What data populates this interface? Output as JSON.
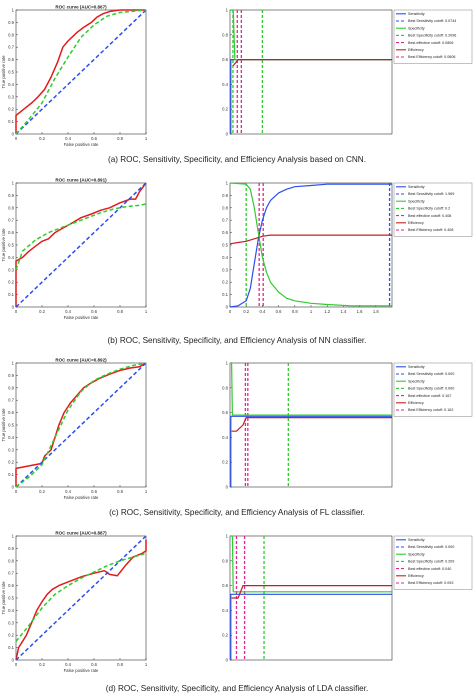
{
  "chart_data": [
    {
      "type": "line",
      "panel": "a-roc",
      "title": "ROC curve (AUC=0.867)",
      "xlabel": "False positive rate",
      "ylabel": "True positive rate",
      "xlim": [
        0,
        1
      ],
      "ylim": [
        0,
        1
      ],
      "xticks": [
        "0",
        "0.2",
        "0.4",
        "0.6",
        "0.8",
        "1"
      ],
      "yticks": [
        "0",
        "0.1",
        "0.2",
        "0.3",
        "0.4",
        "0.5",
        "0.6",
        "0.7",
        "0.8",
        "0.9",
        "1"
      ],
      "series": [
        {
          "color": "#e11b1b",
          "style": "solid",
          "x": [
            0,
            0,
            0.06,
            0.12,
            0.17,
            0.22,
            0.27,
            0.32,
            0.36,
            0.4,
            0.47,
            0.52,
            0.58,
            0.62,
            0.67,
            0.73,
            0.8,
            0.87,
            1
          ],
          "y": [
            0,
            0.15,
            0.2,
            0.25,
            0.3,
            0.36,
            0.46,
            0.58,
            0.7,
            0.75,
            0.82,
            0.86,
            0.9,
            0.94,
            0.97,
            0.99,
            1,
            1,
            1
          ]
        },
        {
          "color": "#2b4ef0",
          "style": "dashed",
          "x": [
            0,
            1
          ],
          "y": [
            0,
            1
          ]
        },
        {
          "color": "#2ecc2e",
          "style": "dashed",
          "x": [
            0,
            0.1,
            0.2,
            0.3,
            0.4,
            0.5,
            0.6,
            0.7,
            0.8,
            1
          ],
          "y": [
            0,
            0.12,
            0.25,
            0.45,
            0.62,
            0.78,
            0.88,
            0.95,
            0.98,
            1
          ]
        }
      ]
    },
    {
      "type": "line",
      "panel": "a-sens",
      "xlim": [
        0,
        1
      ],
      "ylim": [
        0,
        1
      ],
      "xticks": [],
      "yticks": [
        "0",
        "0.2",
        "0.4",
        "0.6",
        "0.8",
        "1"
      ],
      "legend": [
        "Sensitivity",
        "Best Sensitivity cutoff: 0.0744",
        "Specificity",
        "Best Specificity cutoff: 0.2096",
        "Best effective cutoff: 0.0806",
        "Efficiency",
        "Best Efficiency cutoff: 0.0806"
      ],
      "series": [
        {
          "color": "#2b4ef0",
          "style": "solid",
          "x": [
            0.005,
            0.005,
            1
          ],
          "y": [
            0,
            0.6,
            0.6
          ]
        },
        {
          "color": "#2ecc2e",
          "style": "solid",
          "x": [
            0,
            0.02,
            0.03,
            1
          ],
          "y": [
            1,
            1,
            0.6,
            0.6
          ]
        },
        {
          "color": "#c42020",
          "style": "solid",
          "x": [
            0.02,
            0.05,
            1
          ],
          "y": [
            0.55,
            0.6,
            0.6
          ]
        }
      ],
      "vlines": [
        {
          "x": 0.018,
          "color": "#2ecc2e",
          "style": "dashed"
        },
        {
          "x": 0.045,
          "color": "#e0268f",
          "style": "dashed"
        },
        {
          "x": 0.07,
          "color": "#e0268f",
          "style": "dashed"
        },
        {
          "x": 0.2,
          "color": "#2ecc2e",
          "style": "dashed"
        }
      ]
    },
    {
      "type": "line",
      "panel": "b-roc",
      "title": "ROC curve (AUC=0.891)",
      "xlabel": "False positive rate",
      "ylabel": "True positive rate",
      "xlim": [
        0,
        1
      ],
      "ylim": [
        0,
        1
      ],
      "xticks": [
        "0",
        "0.2",
        "0.4",
        "0.6",
        "0.8",
        "1"
      ],
      "yticks": [
        "0",
        "0.1",
        "0.2",
        "0.3",
        "0.4",
        "0.5",
        "0.6",
        "0.7",
        "0.8",
        "0.9",
        "1"
      ],
      "series": [
        {
          "color": "#e11b1b",
          "style": "solid",
          "x": [
            0,
            0,
            0.05,
            0.1,
            0.15,
            0.2,
            0.25,
            0.3,
            0.35,
            0.42,
            0.5,
            0.58,
            0.65,
            0.72,
            0.8,
            0.88,
            0.92,
            0.95,
            1
          ],
          "y": [
            0,
            0.37,
            0.4,
            0.45,
            0.49,
            0.53,
            0.55,
            0.6,
            0.63,
            0.67,
            0.72,
            0.75,
            0.78,
            0.8,
            0.84,
            0.87,
            0.87,
            0.93,
            1
          ]
        },
        {
          "color": "#2b4ef0",
          "style": "dashed",
          "x": [
            0,
            1
          ],
          "y": [
            0,
            1
          ]
        },
        {
          "color": "#2ecc2e",
          "style": "dashed",
          "x": [
            0,
            0.05,
            0.15,
            0.25,
            0.35,
            0.45,
            0.55,
            0.65,
            0.75,
            0.85,
            0.95,
            1
          ],
          "y": [
            0.3,
            0.45,
            0.54,
            0.6,
            0.64,
            0.68,
            0.72,
            0.76,
            0.79,
            0.81,
            0.82,
            0.83
          ]
        }
      ]
    },
    {
      "type": "line",
      "panel": "b-sens",
      "xlim": [
        0,
        2
      ],
      "ylim": [
        0,
        1
      ],
      "xticks": [
        "0",
        "0.2",
        "0.4",
        "0.6",
        "0.8",
        "1",
        "1.2",
        "1.4",
        "1.6",
        "1.8"
      ],
      "yticks": [
        "0",
        "0.1",
        "0.2",
        "0.3",
        "0.4",
        "0.5",
        "0.6",
        "0.7",
        "0.8",
        "0.9",
        "1"
      ],
      "legend": [
        "Sensitivity",
        "Best Sensitivity cutoff: 1.969",
        "Specificity",
        "Best Specificity cutoff: 0.2",
        "Best effective cutoff: 0.408",
        "Efficiency",
        "Best Efficiency cutoff: 0.408"
      ],
      "series": [
        {
          "color": "#2b4ef0",
          "style": "solid",
          "x": [
            0,
            0.1,
            0.2,
            0.25,
            0.3,
            0.35,
            0.4,
            0.45,
            0.5,
            0.6,
            0.7,
            0.8,
            1,
            1.2,
            1.5,
            2
          ],
          "y": [
            0,
            0.01,
            0.05,
            0.15,
            0.35,
            0.55,
            0.7,
            0.8,
            0.86,
            0.92,
            0.95,
            0.97,
            0.98,
            0.99,
            0.99,
            0.99
          ]
        },
        {
          "color": "#2ecc2e",
          "style": "solid",
          "x": [
            0,
            0.2,
            0.25,
            0.3,
            0.35,
            0.4,
            0.45,
            0.5,
            0.6,
            0.7,
            0.8,
            1,
            1.2,
            1.5,
            2
          ],
          "y": [
            1,
            0.99,
            0.95,
            0.8,
            0.6,
            0.4,
            0.28,
            0.2,
            0.12,
            0.07,
            0.05,
            0.03,
            0.02,
            0.01,
            0.01
          ]
        },
        {
          "color": "#c42020",
          "style": "solid",
          "x": [
            0,
            0.1,
            0.2,
            0.3,
            0.35,
            0.4,
            0.5,
            0.6,
            0.8,
            1,
            1.5,
            2
          ],
          "y": [
            0.51,
            0.52,
            0.53,
            0.55,
            0.56,
            0.57,
            0.58,
            0.58,
            0.58,
            0.58,
            0.58,
            0.58
          ]
        }
      ],
      "vlines": [
        {
          "x": 0.2,
          "color": "#2ecc2e",
          "style": "dashed"
        },
        {
          "x": 0.36,
          "color": "#e0268f",
          "style": "dashed"
        },
        {
          "x": 0.41,
          "color": "#e0268f",
          "style": "dashed"
        },
        {
          "x": 1.97,
          "color": "#2b4ef0",
          "style": "dashed"
        }
      ]
    },
    {
      "type": "line",
      "panel": "c-roc",
      "title": "ROC curve (AUC=0.892)",
      "xlabel": "False positive rate",
      "ylabel": "True positive rate",
      "xlim": [
        0,
        1
      ],
      "ylim": [
        0,
        1
      ],
      "xticks": [
        "0",
        "0.2",
        "0.4",
        "0.6",
        "0.8",
        "1"
      ],
      "yticks": [
        "0",
        "0.1",
        "0.2",
        "0.3",
        "0.4",
        "0.5",
        "0.6",
        "0.7",
        "0.8",
        "0.9",
        "1"
      ],
      "series": [
        {
          "color": "#e11b1b",
          "style": "solid",
          "x": [
            0,
            0,
            0.1,
            0.2,
            0.22,
            0.27,
            0.3,
            0.33,
            0.37,
            0.42,
            0.47,
            0.52,
            0.58,
            0.65,
            0.72,
            0.8,
            0.88,
            0.95,
            1
          ],
          "y": [
            0,
            0.15,
            0.17,
            0.19,
            0.25,
            0.3,
            0.4,
            0.5,
            0.6,
            0.68,
            0.74,
            0.8,
            0.84,
            0.88,
            0.91,
            0.94,
            0.96,
            0.97,
            1
          ]
        },
        {
          "color": "#2b4ef0",
          "style": "dashed",
          "x": [
            0,
            1
          ],
          "y": [
            0,
            1
          ]
        },
        {
          "color": "#2ecc2e",
          "style": "dashed",
          "x": [
            0,
            0.1,
            0.2,
            0.3,
            0.4,
            0.5,
            0.6,
            0.7,
            0.8,
            0.9,
            1
          ],
          "y": [
            0,
            0.08,
            0.18,
            0.4,
            0.62,
            0.77,
            0.86,
            0.91,
            0.95,
            0.98,
            1
          ]
        }
      ]
    },
    {
      "type": "line",
      "panel": "c-sens",
      "xlim": [
        0,
        1
      ],
      "ylim": [
        0,
        1
      ],
      "xticks": [],
      "yticks": [
        "0",
        "0.2",
        "0.4",
        "0.6",
        "0.8",
        "1"
      ],
      "legend": [
        "Sensitivity",
        "Best Sensitivity cutoff: 0.000",
        "Specificity",
        "Best Specificity cutoff: 0.000",
        "Best effective cutoff: 0.167",
        "Efficiency",
        "Best Efficiency cutoff: 0.162"
      ],
      "series": [
        {
          "color": "#2b4ef0",
          "style": "solid",
          "x": [
            0.005,
            0.005,
            1
          ],
          "y": [
            0,
            0.57,
            0.57
          ]
        },
        {
          "color": "#2ecc2e",
          "style": "solid",
          "x": [
            0,
            0.01,
            0.015,
            1
          ],
          "y": [
            1,
            1,
            0.58,
            0.58
          ]
        },
        {
          "color": "#c42020",
          "style": "solid",
          "x": [
            0.01,
            0.04,
            0.08,
            0.1,
            1
          ],
          "y": [
            0.45,
            0.45,
            0.5,
            0.56,
            0.56
          ]
        }
      ],
      "vlines": [
        {
          "x": 0.095,
          "color": "#e0268f",
          "style": "dashed"
        },
        {
          "x": 0.11,
          "color": "#e0268f",
          "style": "dashed"
        },
        {
          "x": 0.36,
          "color": "#2ecc2e",
          "style": "dashed"
        }
      ]
    },
    {
      "type": "line",
      "panel": "d-roc",
      "title": "ROC curve (AUC=0.887)",
      "xlabel": "False positive rate",
      "ylabel": "True positive rate",
      "xlim": [
        0,
        1
      ],
      "ylim": [
        0,
        1
      ],
      "xticks": [
        "0",
        "0.2",
        "0.4",
        "0.6",
        "0.8",
        "1"
      ],
      "yticks": [
        "0",
        "0.1",
        "0.2",
        "0.3",
        "0.4",
        "0.5",
        "0.6",
        "0.7",
        "0.8",
        "0.9",
        "1"
      ],
      "series": [
        {
          "color": "#e11b1b",
          "style": "solid",
          "x": [
            0,
            0.02,
            0.08,
            0.12,
            0.16,
            0.2,
            0.24,
            0.28,
            0.33,
            0.4,
            0.5,
            0.6,
            0.68,
            0.72,
            0.78,
            0.84,
            0.9,
            0.97,
            1,
            1
          ],
          "y": [
            0,
            0.1,
            0.2,
            0.3,
            0.4,
            0.47,
            0.53,
            0.57,
            0.6,
            0.63,
            0.67,
            0.7,
            0.72,
            0.69,
            0.68,
            0.76,
            0.83,
            0.86,
            0.88,
            0.97
          ]
        },
        {
          "color": "#2b4ef0",
          "style": "dashed",
          "x": [
            0,
            1
          ],
          "y": [
            0,
            1
          ]
        },
        {
          "color": "#2ecc2e",
          "style": "dashed",
          "x": [
            0,
            0.1,
            0.2,
            0.3,
            0.4,
            0.5,
            0.6,
            0.7,
            0.8,
            0.9,
            1
          ],
          "y": [
            0.15,
            0.28,
            0.42,
            0.53,
            0.6,
            0.66,
            0.71,
            0.76,
            0.8,
            0.83,
            0.86
          ]
        }
      ]
    },
    {
      "type": "line",
      "panel": "d-sens",
      "xlim": [
        0,
        1
      ],
      "ylim": [
        0,
        1
      ],
      "xticks": [],
      "yticks": [
        "0",
        "0.2",
        "0.4",
        "0.6",
        "0.8",
        "1"
      ],
      "legend": [
        "Sensitivity",
        "Best Sensitivity cutoff: 0.000",
        "Specificity",
        "Best Specificity cutoff: 0.209",
        "Best effective cutoff: 0.040",
        "Efficiency",
        "Best Efficiency cutoff: 0.093"
      ],
      "series": [
        {
          "color": "#2b4ef0",
          "style": "solid",
          "x": [
            0.005,
            0.005,
            1
          ],
          "y": [
            0,
            0.53,
            0.53
          ]
        },
        {
          "color": "#2ecc2e",
          "style": "solid",
          "x": [
            0,
            0.015,
            0.02,
            1
          ],
          "y": [
            1,
            1,
            0.55,
            0.55
          ]
        },
        {
          "color": "#c42020",
          "style": "solid",
          "x": [
            0.01,
            0.05,
            0.08,
            1
          ],
          "y": [
            0.5,
            0.5,
            0.6,
            0.6
          ]
        }
      ],
      "vlines": [
        {
          "x": 0.04,
          "color": "#e0268f",
          "style": "dashed"
        },
        {
          "x": 0.09,
          "color": "#e0268f",
          "style": "dashed"
        },
        {
          "x": 0.21,
          "color": "#2ecc2e",
          "style": "dashed"
        }
      ]
    }
  ],
  "captions": {
    "a": "(a)   ROC, Sensitivity, Specificity, and Efficiency Analysis based on CNN.",
    "b": "(b)   ROC, Sensitivity, Specificity, and Efficiency Analysis of NN classifier.",
    "c": "(c)   ROC, Sensitivity, Specificity, and Efficiency Analysis of FL classifier.",
    "d": "(d)   ROC, Sensitivity, Specificity, and Efficiency Analysis of LDA classifier."
  }
}
